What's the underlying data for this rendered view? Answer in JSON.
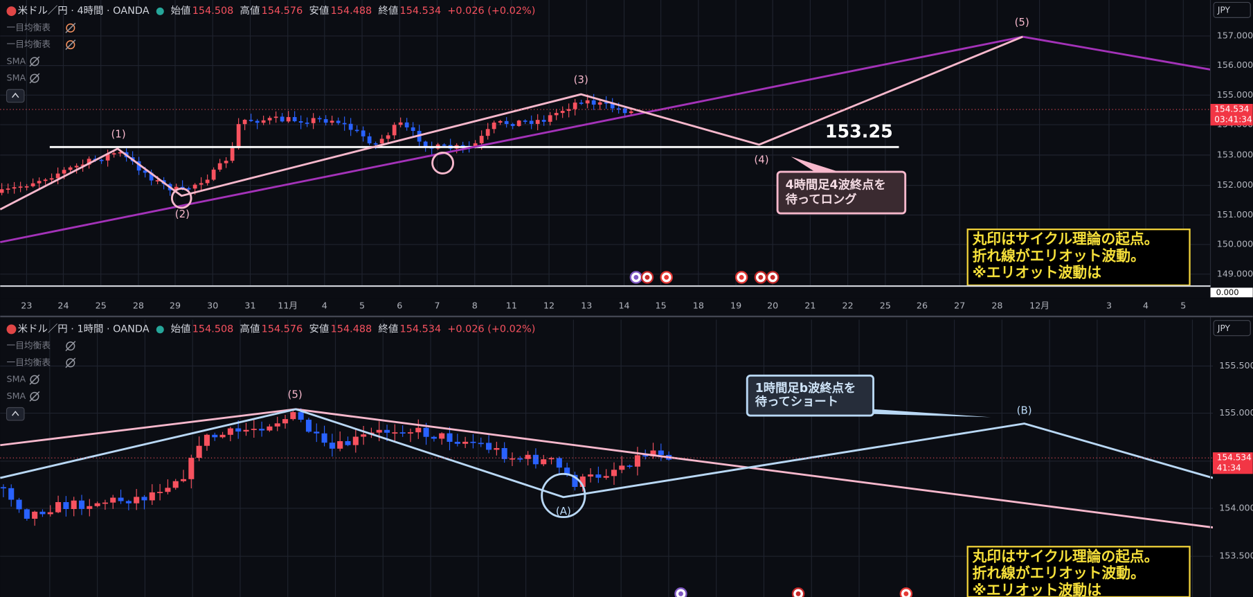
{
  "top_chart": {
    "header": {
      "symbol": "米ドル／円 · 4時間 · OANDA",
      "open_label": "始値",
      "open": "154.508",
      "high_label": "高値",
      "high": "154.576",
      "low_label": "安値",
      "low": "154.488",
      "close_label": "終値",
      "close": "154.534",
      "change": "+0.026 (+0.02%)"
    },
    "indicators": [
      "一目均衡表",
      "一目均衡表",
      "SMA",
      "SMA"
    ],
    "currency": "JPY",
    "price_axis": [
      "157.000",
      "156.000",
      "155.000",
      "154.000",
      "153.000",
      "152.000",
      "151.000",
      "150.000",
      "149.000"
    ],
    "date_axis": [
      "23",
      "24",
      "25",
      "28",
      "29",
      "30",
      "31",
      "11月",
      "4",
      "5",
      "6",
      "7",
      "8",
      "11",
      "12",
      "13",
      "14",
      "15",
      "18",
      "19",
      "20",
      "21",
      "22",
      "25",
      "26",
      "27",
      "28",
      "12月",
      "3",
      "4",
      "5"
    ],
    "price_tag": "154.534",
    "countdown": "03:41:34",
    "indicator_value": "0.000",
    "wave_labels": [
      "(1)",
      "(2)",
      "(3)",
      "(4)",
      "(5)"
    ],
    "level_label": "153.25",
    "callout": [
      "4時間足4波終点を",
      "待ってロング"
    ],
    "note": [
      "丸印はサイクル理論の起点。",
      "折れ線がエリオット波動。",
      "※エリオット波動は"
    ]
  },
  "bottom_chart": {
    "header": {
      "symbol": "米ドル／円 · 1時間 · OANDA",
      "open_label": "始値",
      "open": "154.508",
      "high_label": "高値",
      "high": "154.576",
      "low_label": "安値",
      "low": "154.488",
      "close_label": "終値",
      "close": "154.534",
      "change": "+0.026 (+0.02%)"
    },
    "indicators": [
      "一目均衡表",
      "一目均衡表",
      "SMA",
      "SMA"
    ],
    "currency": "JPY",
    "price_axis": [
      "155.500",
      "155.000",
      "154.000",
      "153.500"
    ],
    "price_tag": "154.534",
    "countdown": "41:34",
    "wave_labels": [
      "(5)",
      "(A)",
      "(B)"
    ],
    "callout": [
      "1時間足b波終点を",
      "待ってショート"
    ],
    "note": [
      "丸印はサイクル理論の起点。",
      "折れ線がエリオット波動。",
      "※エリオット波動は"
    ]
  }
}
